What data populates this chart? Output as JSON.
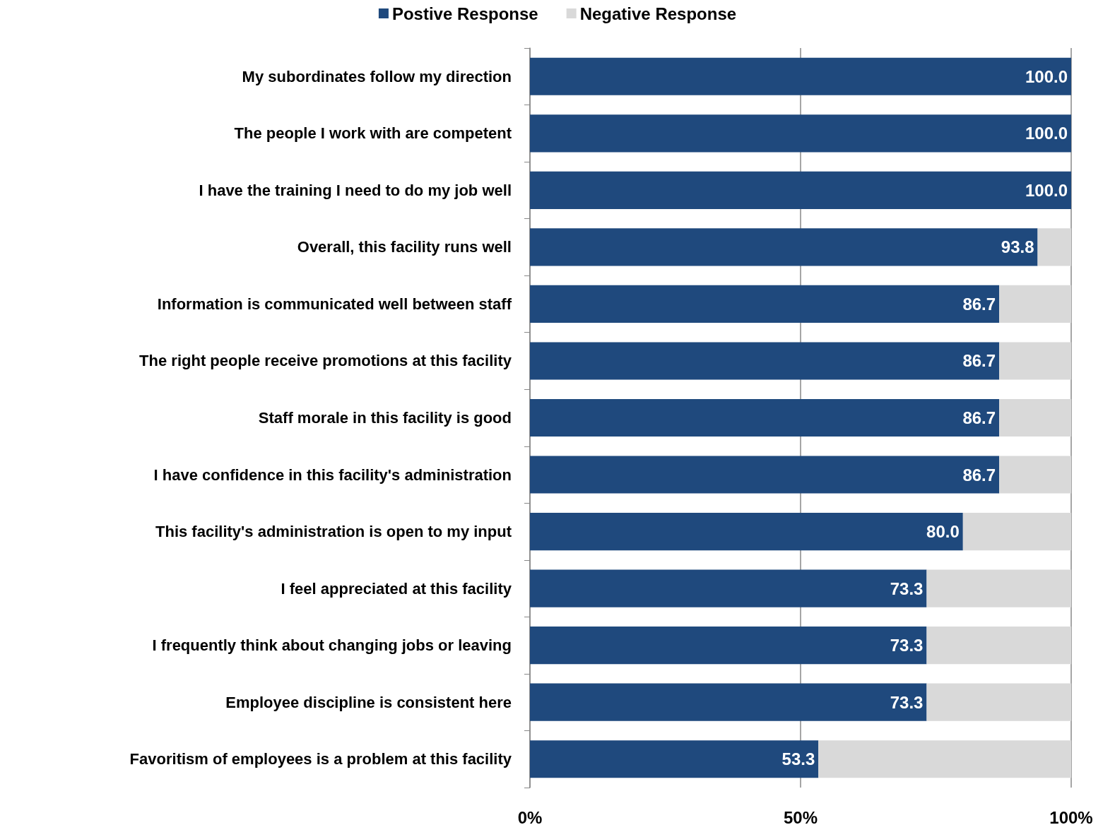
{
  "chart_data": {
    "type": "bar",
    "orientation": "horizontal",
    "stacked": true,
    "categories": [
      "My subordinates follow my direction",
      "The people I work with are competent",
      "I have the training I need to do my job well",
      "Overall, this facility runs well",
      "Information is communicated well between staff",
      "The right people receive promotions at this facility",
      "Staff morale in this facility is good",
      "I have confidence in this facility's administration",
      "This facility's administration is open to my input",
      "I feel appreciated at this facility",
      "I frequently think about changing jobs or leaving",
      "Employee discipline is consistent here",
      "Favoritism of employees is a problem at this facility"
    ],
    "series": [
      {
        "name": "Postive Response",
        "color": "#1f497d",
        "values": [
          100.0,
          100.0,
          100.0,
          93.8,
          86.7,
          86.7,
          86.7,
          86.7,
          80.0,
          73.3,
          73.3,
          73.3,
          53.3
        ],
        "value_labels": [
          "100.0",
          "100.0",
          "100.0",
          "93.8",
          "86.7",
          "86.7",
          "86.7",
          "86.7",
          "80.0",
          "73.3",
          "73.3",
          "73.3",
          "53.3"
        ]
      },
      {
        "name": "Negative Response",
        "color": "#d9d9d9",
        "values": [
          0,
          0,
          0,
          6.2,
          13.3,
          13.3,
          13.3,
          13.3,
          20.0,
          26.7,
          26.7,
          26.7,
          46.7
        ]
      }
    ],
    "xlim": [
      0,
      100
    ],
    "xticks": [
      {
        "value": 0,
        "label": "0%"
      },
      {
        "value": 50,
        "label": "50%"
      },
      {
        "value": 100,
        "label": "100%"
      }
    ],
    "grid": "x",
    "legend": "top"
  }
}
